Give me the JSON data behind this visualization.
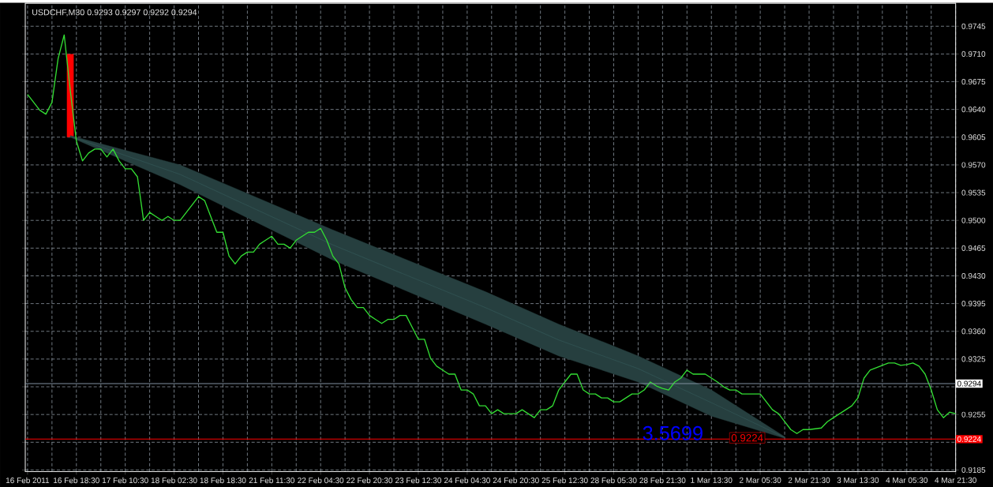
{
  "chart_data": {
    "type": "line",
    "title": "USDCHF,M30  0.9293 0.9297 0.9292 0.9294",
    "ylim": [
      0.9183,
      0.9774
    ],
    "grid": true,
    "categories": [
      "16 Feb 2011",
      null,
      null,
      null,
      null,
      null,
      null,
      null,
      "16 Feb 18:30",
      null,
      null,
      null,
      null,
      null,
      null,
      null,
      "17 Feb 10:30",
      null,
      null,
      null,
      null,
      null,
      null,
      null,
      "18 Feb 02:30",
      null,
      null,
      null,
      null,
      null,
      null,
      null,
      "18 Feb 18:30",
      null,
      null,
      null,
      null,
      null,
      null,
      null,
      "21 Feb 11:30",
      null,
      null,
      null,
      null,
      null,
      null,
      null,
      "22 Feb 04:30",
      null,
      null,
      null,
      null,
      null,
      null,
      null,
      "22 Feb 20:30",
      null,
      null,
      null,
      null,
      null,
      null,
      null,
      "23 Feb 12:30",
      null,
      null,
      null,
      null,
      null,
      null,
      null,
      "24 Feb 04:30",
      null,
      null,
      null,
      null,
      null,
      null,
      null,
      "24 Feb 20:30",
      null,
      null,
      null,
      null,
      null,
      null,
      null,
      "25 Feb 12:30",
      null,
      null,
      null,
      null,
      null,
      null,
      null,
      "28 Feb 05:30",
      null,
      null,
      null,
      null,
      null,
      null,
      null,
      "28 Feb 21:30",
      null,
      null,
      null,
      null,
      null,
      null,
      null,
      "1 Mar 13:30",
      null,
      null,
      null,
      null,
      null,
      null,
      null,
      "2 Mar 05:30",
      null,
      null,
      null,
      null,
      null,
      null,
      null,
      "2 Mar 21:30",
      null,
      null,
      null,
      null,
      null,
      null,
      null,
      "3 Mar 13:30",
      null,
      null,
      null,
      null,
      null,
      null,
      null,
      "4 Mar 05:30",
      null,
      null,
      null,
      null,
      null,
      null,
      null,
      "4 Mar 21:30"
    ],
    "yticks": [
      {
        "value": 0.9185,
        "label": "0.9185"
      },
      {
        "value": 0.922,
        "label": null
      },
      {
        "value": 0.9255,
        "label": "0.9255"
      },
      {
        "value": 0.929,
        "label": null
      },
      {
        "value": 0.9325,
        "label": "0.9325"
      },
      {
        "value": 0.936,
        "label": "0.9360"
      },
      {
        "value": 0.9395,
        "label": "0.9395"
      },
      {
        "value": 0.943,
        "label": "0.9430"
      },
      {
        "value": 0.9465,
        "label": "0.9465"
      },
      {
        "value": 0.95,
        "label": "0.9500"
      },
      {
        "value": 0.9535,
        "label": "0.9535"
      },
      {
        "value": 0.957,
        "label": "0.9570"
      },
      {
        "value": 0.9605,
        "label": "0.9605"
      },
      {
        "value": 0.964,
        "label": "0.9640"
      },
      {
        "value": 0.9675,
        "label": "0.9675"
      },
      {
        "value": 0.971,
        "label": "0.9710"
      },
      {
        "value": 0.9745,
        "label": "0.9745"
      }
    ],
    "series": [
      {
        "color": "#33dd33",
        "values": [
          0.9659,
          0.9649,
          0.9639,
          0.9634,
          0.9649,
          0.9704,
          0.9734,
          0.9664,
          0.96,
          0.9575,
          0.9585,
          0.959,
          0.959,
          0.958,
          0.959,
          0.9575,
          0.9565,
          0.9565,
          0.9555,
          0.95,
          0.951,
          0.9505,
          0.95,
          0.9505,
          0.95,
          0.95,
          0.951,
          0.952,
          0.953,
          0.9525,
          0.9505,
          0.9485,
          0.9485,
          0.9455,
          0.9445,
          0.9455,
          0.946,
          0.946,
          0.947,
          0.9475,
          0.948,
          0.947,
          0.947,
          0.9465,
          0.9475,
          0.948,
          0.9485,
          0.9485,
          0.949,
          0.9475,
          0.9455,
          0.9445,
          0.9415,
          0.94,
          0.939,
          0.939,
          0.938,
          0.9375,
          0.937,
          0.9375,
          0.9375,
          0.938,
          0.938,
          0.9365,
          0.935,
          0.935,
          0.9326,
          0.9316,
          0.9311,
          0.9306,
          0.9306,
          0.9286,
          0.9286,
          0.9281,
          0.9266,
          0.9266,
          0.9256,
          0.9261,
          0.9256,
          0.9256,
          0.9256,
          0.9261,
          0.9256,
          0.9251,
          0.9261,
          0.9261,
          0.9266,
          0.9286,
          0.9296,
          0.9306,
          0.9306,
          0.9286,
          0.9281,
          0.9281,
          0.9276,
          0.9276,
          0.9271,
          0.9271,
          0.9276,
          0.9281,
          0.9281,
          0.9286,
          0.9296,
          0.9291,
          0.9288,
          0.9286,
          0.9296,
          0.9301,
          0.9311,
          0.9306,
          0.9306,
          0.9306,
          0.9301,
          0.9296,
          0.929,
          0.9286,
          0.9286,
          0.9281,
          0.9281,
          0.9281,
          0.9281,
          0.9271,
          0.9261,
          0.9256,
          0.9246,
          0.9236,
          0.9231,
          0.9236,
          0.9236,
          0.9237,
          0.9238,
          0.9246,
          0.9251,
          0.9256,
          0.9261,
          0.9266,
          0.9276,
          0.9301,
          0.9311,
          0.9314,
          0.9317,
          0.932,
          0.932,
          0.9317,
          0.9318,
          0.932,
          0.9316,
          0.9306,
          0.9286,
          0.9261,
          0.9251,
          0.9258,
          0.9256
        ]
      },
      {
        "color": "#2f4f4f",
        "values": [
          null,
          null,
          null,
          null,
          null,
          null,
          null,
          0.9606,
          null,
          null,
          null,
          null,
          null,
          null,
          null,
          null,
          null,
          null,
          null,
          null,
          null,
          null,
          null,
          null,
          null,
          0.9558,
          null,
          null,
          null,
          null,
          null,
          null,
          null,
          null,
          null,
          null,
          null,
          null,
          null,
          null,
          null,
          null,
          null,
          null,
          null,
          null,
          null,
          null,
          null,
          null,
          0.9469,
          null,
          null,
          null,
          null,
          null,
          null,
          null,
          null,
          null,
          null,
          null,
          null,
          null,
          null,
          null,
          null,
          null,
          null,
          null,
          null,
          null,
          null,
          null,
          null,
          0.939,
          null,
          null,
          null,
          null,
          null,
          null,
          null,
          null,
          null,
          null,
          null,
          0.9349,
          null,
          null,
          null,
          null,
          null,
          null,
          null,
          null,
          null,
          null,
          null,
          null,
          0.9313,
          null,
          null,
          null,
          null,
          null,
          null,
          null,
          null,
          null,
          null,
          null,
          0.927,
          null,
          null,
          null,
          null,
          null,
          null,
          null,
          null,
          null,
          null,
          null,
          0.9226,
          null,
          null,
          null,
          null,
          null,
          null,
          null,
          null,
          null,
          null,
          null,
          null,
          null,
          null,
          null,
          null,
          null,
          null,
          null,
          null,
          null,
          null,
          null,
          null,
          null,
          null,
          null,
          null
        ],
        "lower": [
          null,
          null,
          null,
          null,
          null,
          null,
          null,
          0.9605,
          null,
          null,
          null,
          null,
          null,
          null,
          null,
          null,
          null,
          null,
          null,
          null,
          null,
          null,
          null,
          null,
          null,
          0.9545,
          null,
          null,
          null,
          null,
          null,
          null,
          null,
          null,
          null,
          null,
          null,
          null,
          null,
          null,
          null,
          null,
          null,
          null,
          null,
          null,
          null,
          null,
          null,
          null,
          0.945,
          null,
          null,
          null,
          null,
          null,
          null,
          null,
          null,
          null,
          null,
          null,
          null,
          null,
          null,
          null,
          null,
          null,
          null,
          null,
          null,
          null,
          null,
          null,
          null,
          0.9369,
          null,
          null,
          null,
          null,
          null,
          null,
          null,
          null,
          null,
          null,
          null,
          0.9329,
          null,
          null,
          null,
          null,
          null,
          null,
          null,
          null,
          null,
          null,
          null,
          null,
          0.9296,
          null,
          null,
          null,
          null,
          null,
          null,
          null,
          null,
          null,
          null,
          null,
          0.9253,
          null,
          null,
          null,
          null,
          null,
          null,
          null,
          null,
          null,
          null,
          null,
          0.9225,
          null,
          null,
          null,
          null,
          null,
          null,
          null,
          null,
          null,
          null,
          null,
          null,
          null,
          null,
          null,
          null,
          null,
          null,
          null,
          null,
          null,
          null,
          null,
          null,
          null,
          null,
          null,
          null
        ],
        "upper": [
          null,
          null,
          null,
          null,
          null,
          null,
          null,
          0.9607,
          null,
          null,
          null,
          null,
          null,
          null,
          null,
          null,
          null,
          null,
          null,
          null,
          null,
          null,
          null,
          null,
          null,
          0.957,
          null,
          null,
          null,
          null,
          null,
          null,
          null,
          null,
          null,
          null,
          null,
          null,
          null,
          null,
          null,
          null,
          null,
          null,
          null,
          null,
          null,
          null,
          null,
          null,
          0.9488,
          null,
          null,
          null,
          null,
          null,
          null,
          null,
          null,
          null,
          null,
          null,
          null,
          null,
          null,
          null,
          null,
          null,
          null,
          null,
          null,
          null,
          null,
          null,
          null,
          0.941,
          null,
          null,
          null,
          null,
          null,
          null,
          null,
          null,
          null,
          null,
          null,
          0.9369,
          null,
          null,
          null,
          null,
          null,
          null,
          null,
          null,
          null,
          null,
          null,
          null,
          0.9329,
          null,
          null,
          null,
          null,
          null,
          null,
          null,
          null,
          null,
          null,
          null,
          0.9286,
          null,
          null,
          null,
          null,
          null,
          null,
          null,
          null,
          null,
          null,
          null,
          0.9227,
          null,
          null,
          null,
          null,
          null,
          null,
          null,
          null,
          null,
          null,
          null,
          null,
          null,
          null,
          null,
          null,
          null,
          null,
          null,
          null,
          null,
          null,
          null,
          null,
          null,
          null,
          null,
          null
        ]
      },
      {
        "type": "bar",
        "color": "#ff0000",
        "base": [
          null,
          null,
          null,
          null,
          null,
          null,
          null,
          0.9605,
          null,
          null,
          null,
          null,
          null,
          null,
          null,
          null,
          null,
          null,
          null,
          null,
          null,
          null,
          null,
          null,
          null,
          null,
          null,
          null,
          null,
          null,
          null,
          null,
          null,
          null,
          null,
          null,
          null,
          null,
          null,
          null,
          null,
          null,
          null,
          null,
          null,
          null,
          null,
          null,
          null,
          null,
          null,
          null,
          null,
          null,
          null,
          null,
          null,
          null,
          null,
          null,
          null,
          null,
          null,
          null,
          null,
          null,
          null,
          null,
          null,
          null,
          null,
          null,
          null,
          null,
          null,
          null,
          null,
          null,
          null,
          null,
          null,
          null,
          null,
          null,
          null,
          null,
          null,
          null,
          null,
          null,
          null,
          null,
          null,
          null,
          null,
          null,
          null,
          null,
          null,
          null,
          null,
          null,
          null,
          null,
          null,
          null,
          null,
          null,
          null,
          null,
          null,
          null,
          null,
          null,
          null,
          null,
          null,
          null,
          null,
          null,
          null,
          null,
          null,
          null,
          null,
          null,
          null,
          null,
          null,
          null,
          null,
          null,
          null,
          null,
          null,
          null,
          null,
          null,
          null,
          null,
          null,
          null,
          null,
          null,
          null,
          null,
          null,
          null,
          null,
          null,
          null,
          null,
          null
        ],
        "values": [
          null,
          null,
          null,
          null,
          null,
          null,
          null,
          0.0105,
          null,
          null,
          null,
          null,
          null,
          null,
          null,
          null,
          null,
          null,
          null,
          null,
          null,
          null,
          null,
          null,
          null,
          null,
          null,
          null,
          null,
          null,
          null,
          null,
          null,
          null,
          null,
          null,
          null,
          null,
          null,
          null,
          null,
          null,
          null,
          null,
          null,
          null,
          null,
          null,
          null,
          null,
          null,
          null,
          null,
          null,
          null,
          null,
          null,
          null,
          null,
          null,
          null,
          null,
          null,
          null,
          null,
          null,
          null,
          null,
          null,
          null,
          null,
          null,
          null,
          null,
          null,
          null,
          null,
          null,
          null,
          null,
          null,
          null,
          null,
          null,
          null,
          null,
          null,
          null,
          null,
          null,
          null,
          null,
          null,
          null,
          null,
          null,
          null,
          null,
          null,
          null,
          null,
          null,
          null,
          null,
          null,
          null,
          null,
          null,
          null,
          null,
          null,
          null,
          null,
          null,
          null,
          null,
          null,
          null,
          null,
          null,
          null,
          null,
          null,
          null,
          null,
          null,
          null,
          null,
          null,
          null,
          null,
          null,
          null,
          null,
          null,
          null,
          null,
          null,
          null,
          null,
          null,
          null,
          null,
          null,
          null,
          null,
          null,
          null,
          null,
          null,
          null,
          null,
          null
        ]
      }
    ],
    "ref_lines": [
      {
        "axis": "y",
        "value": 0.9294,
        "label": "0.9294",
        "color": "#8090a0"
      },
      {
        "axis": "y",
        "value": 0.9224,
        "label": "0.9224",
        "color": "#ff0000"
      }
    ],
    "annotations": [
      "3.5699",
      "0.9224"
    ]
  }
}
